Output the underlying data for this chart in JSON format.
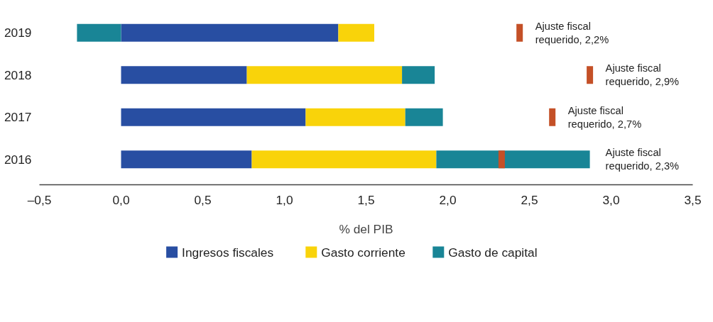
{
  "chart_data": {
    "type": "bar",
    "orientation": "horizontal",
    "stacked": true,
    "xlabel": "% del PIB",
    "categories": [
      "2019",
      "2018",
      "2017",
      "2016"
    ],
    "series": [
      {
        "name": "Ingresos fiscales",
        "color": "#284ea2",
        "values": [
          1.33,
          0.77,
          1.13,
          0.8
        ]
      },
      {
        "name": "Gasto corriente",
        "color": "#f9d30a",
        "values": [
          0.22,
          0.95,
          0.61,
          1.13
        ]
      },
      {
        "name": "Gasto de capital",
        "color": "#198596",
        "values": [
          -0.27,
          0.2,
          0.23,
          0.94
        ]
      },
      {
        "type": "scatter",
        "color": "#c45027",
        "marker": "square",
        "values": [
          2.44,
          2.87,
          2.64,
          2.33
        ]
      }
    ],
    "annotations": [
      "Ajuste fiscal\nrequerido, 2,2%",
      "Ajuste fiscal\nrequerido, 2,9%",
      "Ajuste fiscal\nrequerido, 2,7%",
      "Ajuste fiscal\nrequerido, 2,3%"
    ],
    "xlim": [
      -0.5,
      3.5
    ],
    "xticks": [
      {
        "value": -0.5,
        "label": "–0,5"
      },
      {
        "value": 0,
        "label": "0,0"
      },
      {
        "value": 0.5,
        "label": "0,5"
      },
      {
        "value": 1,
        "label": "1,0"
      },
      {
        "value": 1.5,
        "label": "1,5"
      },
      {
        "value": 2,
        "label": "2,0"
      },
      {
        "value": 2.5,
        "label": "2,5"
      },
      {
        "value": 3,
        "label": "3,0"
      },
      {
        "value": 3.5,
        "label": "3,5"
      }
    ],
    "grid": false,
    "legend": "bottom"
  }
}
